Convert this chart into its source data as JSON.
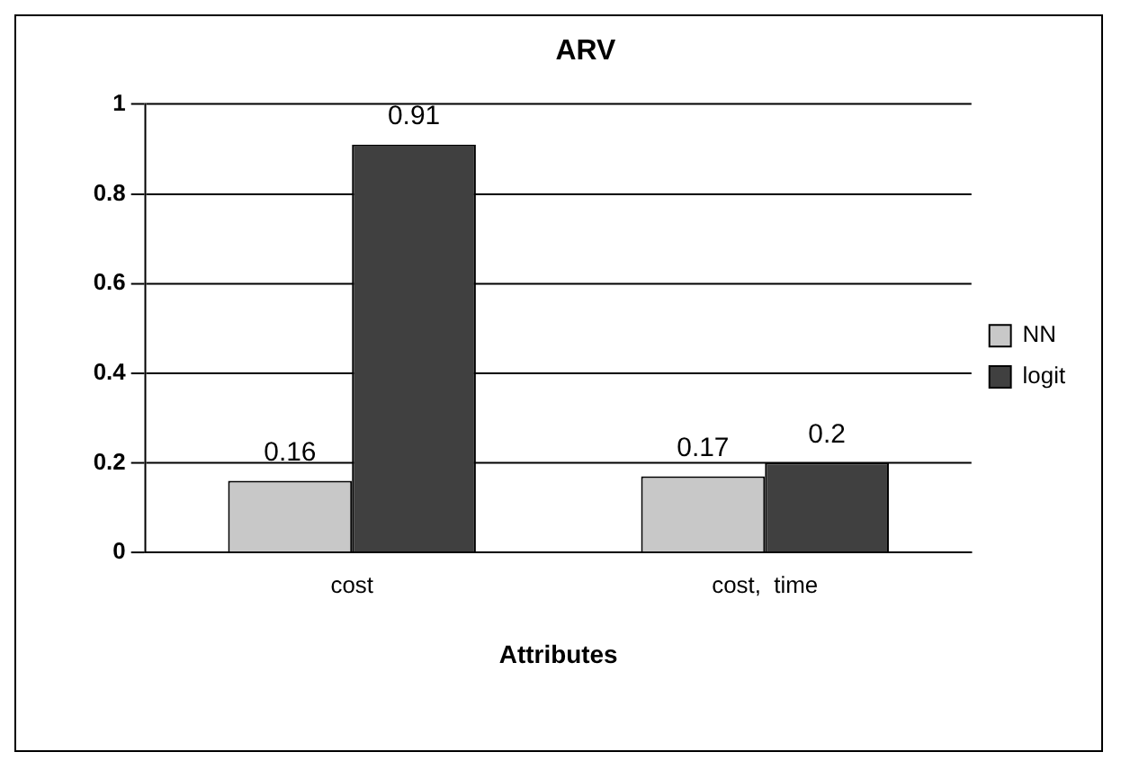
{
  "chart_data": {
    "type": "bar",
    "title": "ARV",
    "xlabel": "Attributes",
    "categories": [
      "cost",
      "cost,  time"
    ],
    "series": [
      {
        "name": "NN",
        "color": "#c8c8c8",
        "values": [
          0.16,
          0.17
        ]
      },
      {
        "name": "logit",
        "color": "#404040",
        "values": [
          0.91,
          0.2
        ]
      }
    ],
    "ylim": [
      0,
      1
    ],
    "yticks": [
      0,
      0.2,
      0.4,
      0.6,
      0.8,
      1
    ],
    "grid": "y",
    "legend": "right",
    "data_labels": true
  }
}
